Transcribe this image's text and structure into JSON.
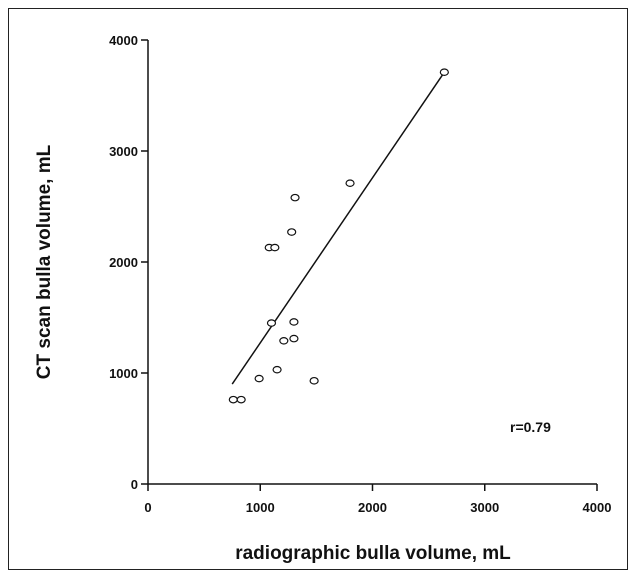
{
  "chart_data": {
    "type": "scatter",
    "xlabel": "radiographic bulla volume, mL",
    "ylabel": "CT scan bulla volume, mL",
    "xlim": [
      0,
      4000
    ],
    "ylim": [
      0,
      4000
    ],
    "xticks": [
      "0",
      "1000",
      "2000",
      "3000",
      "4000"
    ],
    "yticks": [
      "0",
      "1000",
      "2000",
      "3000",
      "4000"
    ],
    "annotation": "r=0.79",
    "grid": false,
    "points": [
      {
        "x": 760,
        "y": 760
      },
      {
        "x": 830,
        "y": 760
      },
      {
        "x": 990,
        "y": 950
      },
      {
        "x": 1100,
        "y": 1450
      },
      {
        "x": 1080,
        "y": 2130
      },
      {
        "x": 1130,
        "y": 2130
      },
      {
        "x": 1150,
        "y": 1030
      },
      {
        "x": 1210,
        "y": 1290
      },
      {
        "x": 1280,
        "y": 2270
      },
      {
        "x": 1300,
        "y": 1460
      },
      {
        "x": 1300,
        "y": 1310
      },
      {
        "x": 1310,
        "y": 2580
      },
      {
        "x": 1480,
        "y": 930
      },
      {
        "x": 1800,
        "y": 2710
      },
      {
        "x": 2640,
        "y": 3710
      }
    ],
    "fit_line": {
      "x": [
        750,
        2640
      ],
      "y": [
        900,
        3710
      ]
    }
  }
}
